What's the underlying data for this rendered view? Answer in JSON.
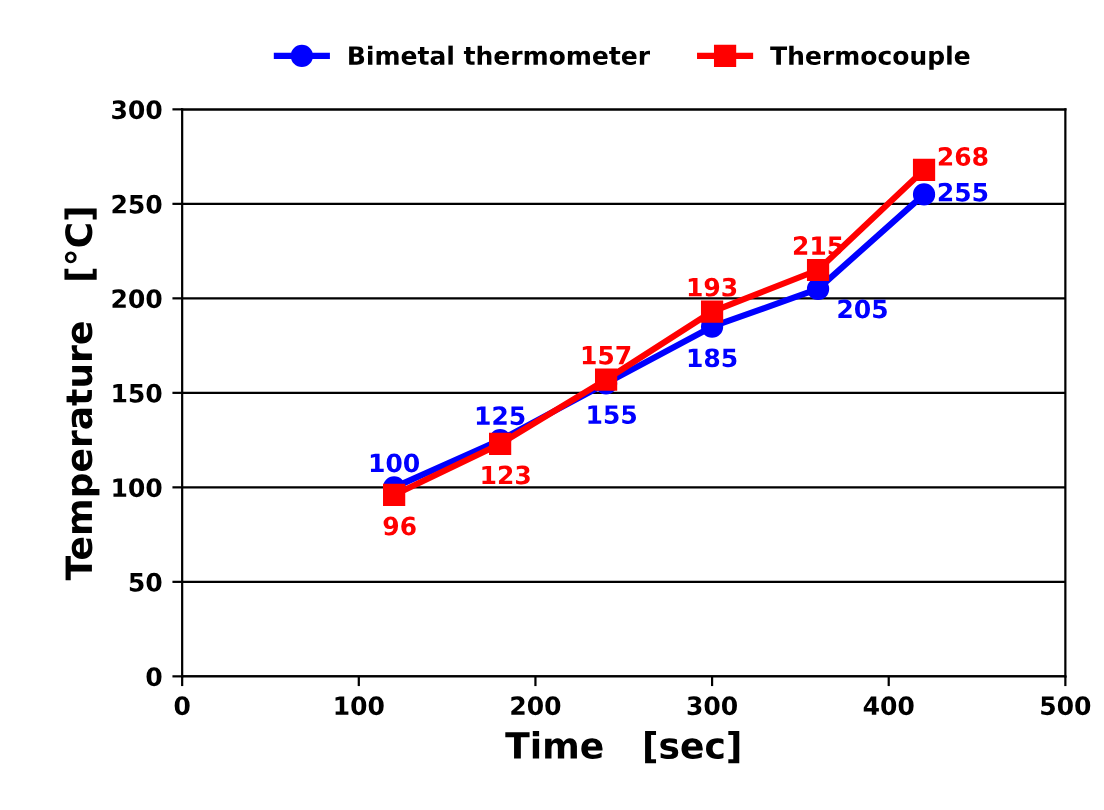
{
  "chart_data": {
    "type": "line",
    "xlabel": "Time   [sec]",
    "ylabel": "Temperature   [°C]",
    "x": [
      120,
      180,
      240,
      300,
      360,
      420
    ],
    "series": [
      {
        "name": "Bimetal thermometer",
        "color": "#0000ff",
        "marker": "circle",
        "values": [
          100,
          125,
          155,
          185,
          205,
          255
        ]
      },
      {
        "name": "Thermocouple",
        "color": "#ff0000",
        "marker": "square",
        "values": [
          96,
          123,
          157,
          193,
          215,
          268
        ]
      }
    ],
    "xlim": [
      0,
      500
    ],
    "xticks": [
      0,
      100,
      200,
      300,
      400,
      500
    ],
    "ylim": [
      0,
      300
    ],
    "yticks": [
      0,
      50,
      100,
      150,
      200,
      250,
      300
    ],
    "grid": "y",
    "legend": "top",
    "data_labels": true,
    "line_style": "solid"
  }
}
